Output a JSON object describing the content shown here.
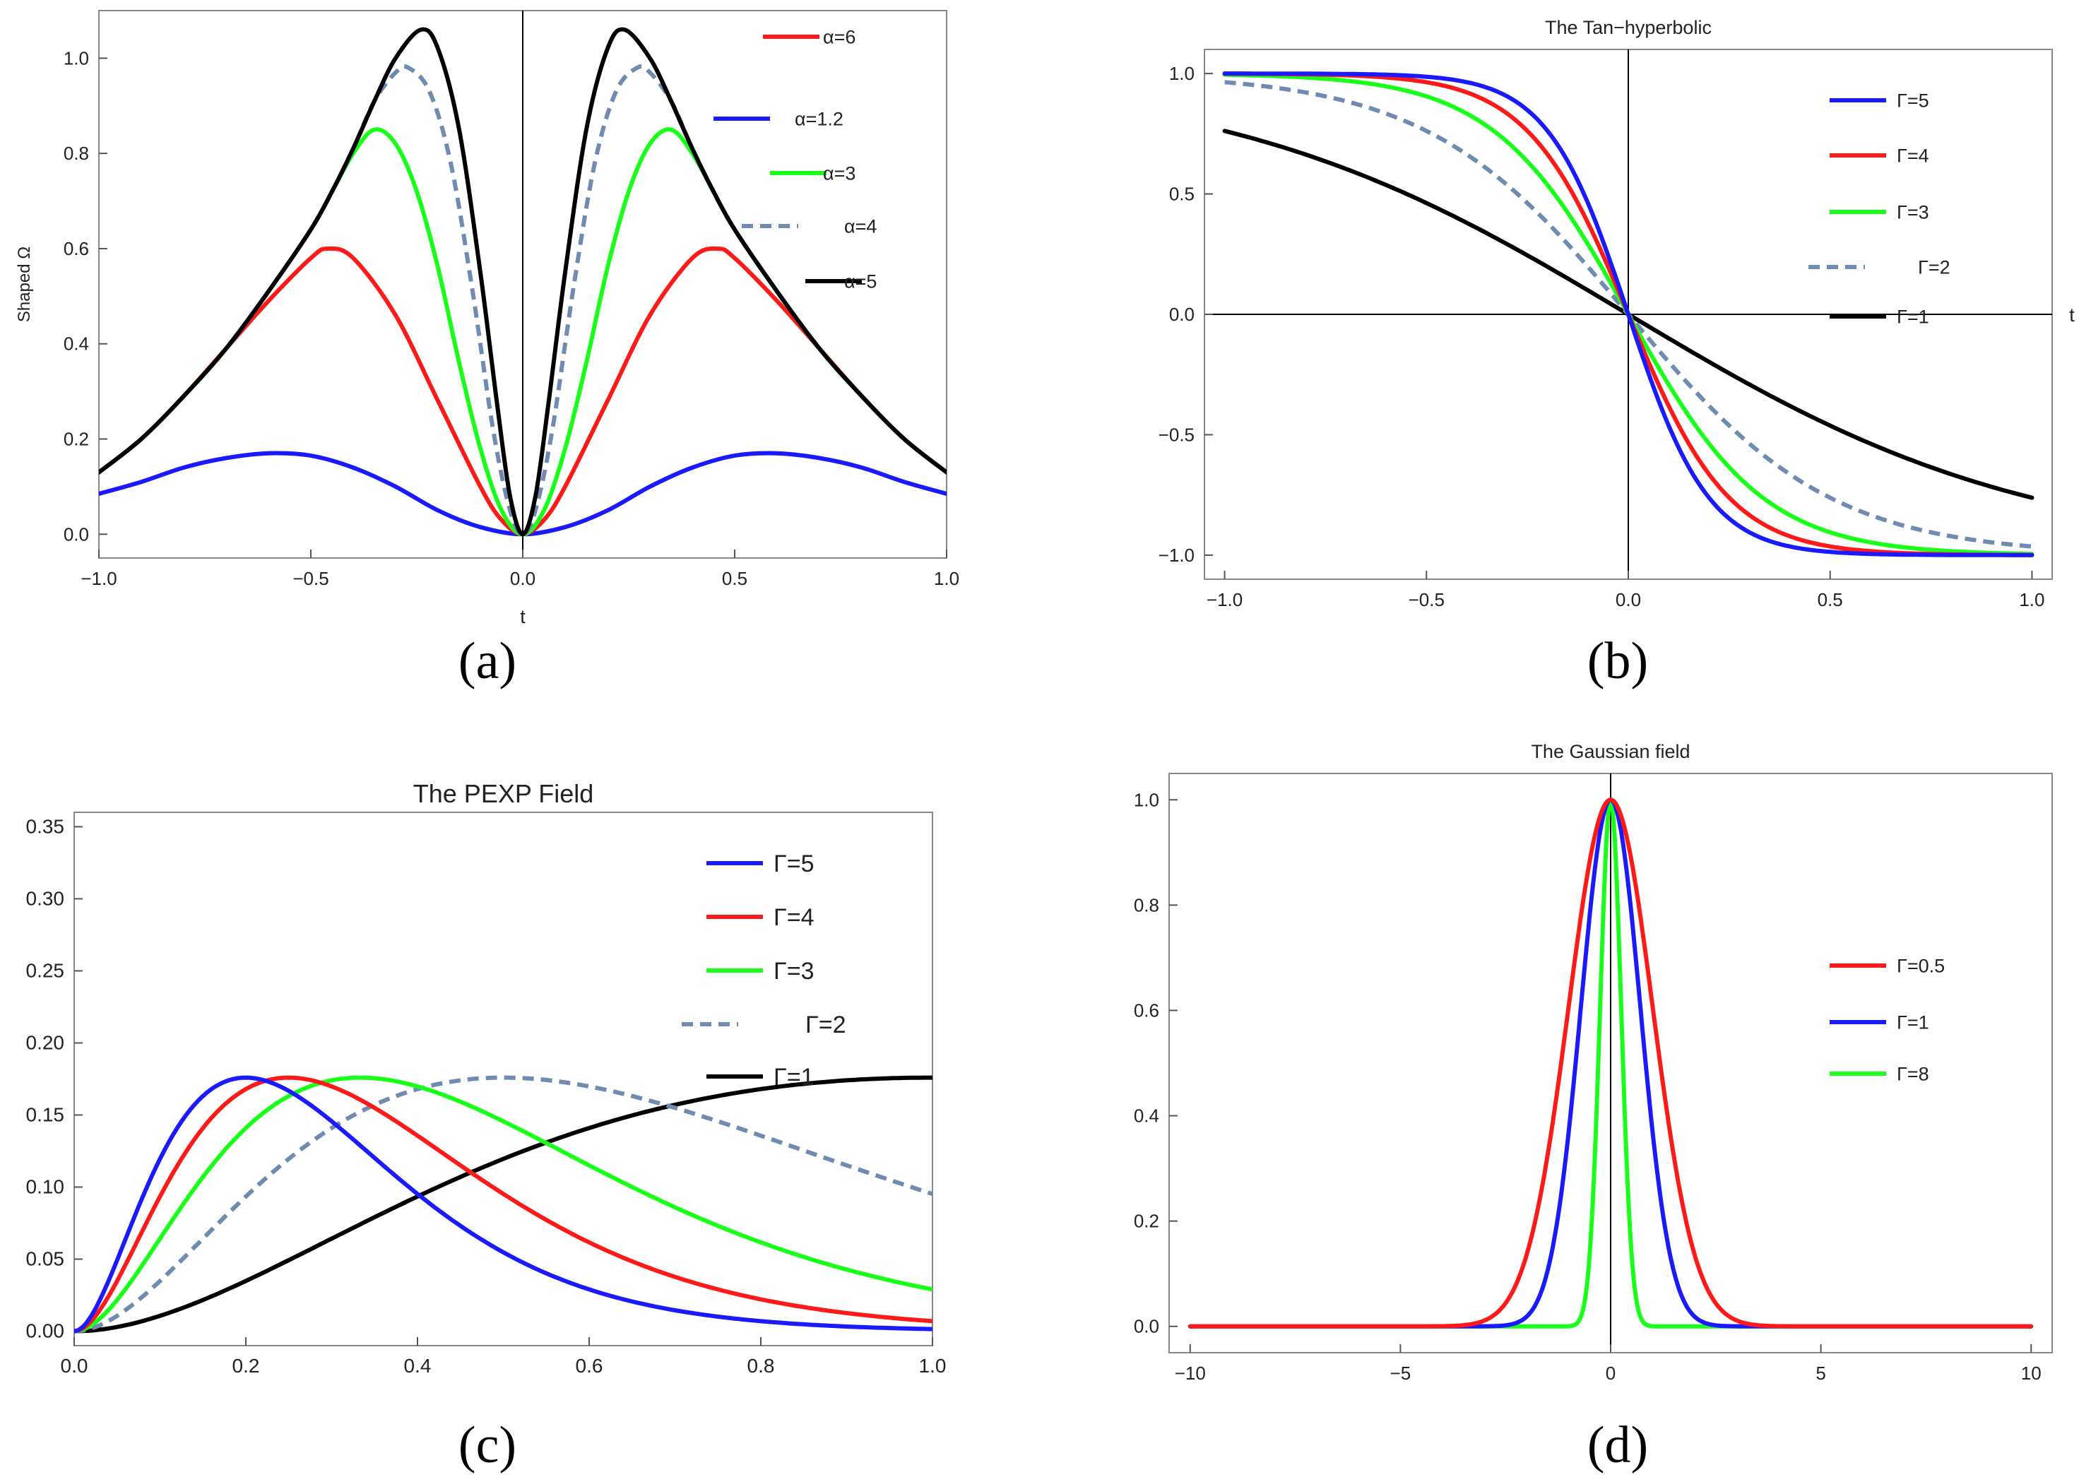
{
  "figure": {
    "panel_labels": [
      "(a)",
      "(b)",
      "(c)",
      "(d)"
    ]
  },
  "chart_data": [
    {
      "id": "a",
      "type": "line",
      "title": "",
      "xlabel": "t",
      "ylabel": "Shaped Ω",
      "xlim": [
        -1.0,
        1.0
      ],
      "ylim": [
        -0.05,
        1.1
      ],
      "x_ticks": [
        -1.0,
        -0.5,
        0.0,
        0.5,
        1.0
      ],
      "x_tick_labels": [
        "-1.0",
        "-0.5",
        "0.0",
        "0.5",
        "1.0"
      ],
      "y_ticks": [
        0.0,
        0.2,
        0.4,
        0.6,
        0.8,
        1.0
      ],
      "y_tick_labels": [
        "0.0",
        "0.2",
        "0.4",
        "0.6",
        "0.8",
        "1.0"
      ],
      "legend_position": "top-right",
      "series": [
        {
          "name": "α=6",
          "color": "#ff1a1a",
          "dash": false,
          "x": [
            -1.0,
            -0.9,
            -0.8,
            -0.7,
            -0.6,
            -0.5,
            -0.46,
            -0.4,
            -0.3,
            -0.2,
            -0.1,
            -0.05,
            0.0,
            0.05,
            0.1,
            0.2,
            0.3,
            0.4,
            0.46,
            0.5,
            0.6,
            0.7,
            0.8,
            0.9,
            1.0
          ],
          "y": [
            0.13,
            0.2,
            0.29,
            0.39,
            0.49,
            0.58,
            0.6,
            0.58,
            0.46,
            0.28,
            0.1,
            0.03,
            0.0,
            0.03,
            0.1,
            0.28,
            0.46,
            0.58,
            0.6,
            0.58,
            0.49,
            0.39,
            0.29,
            0.2,
            0.13
          ]
        },
        {
          "name": "α=1.2",
          "color": "#1a1aff",
          "dash": false,
          "x": [
            -1.0,
            -0.9,
            -0.8,
            -0.7,
            -0.6,
            -0.5,
            -0.4,
            -0.3,
            -0.2,
            -0.1,
            0.0,
            0.1,
            0.2,
            0.3,
            0.4,
            0.5,
            0.6,
            0.7,
            0.8,
            0.9,
            1.0
          ],
          "y": [
            0.085,
            0.11,
            0.14,
            0.16,
            0.17,
            0.165,
            0.14,
            0.1,
            0.05,
            0.015,
            0.0,
            0.015,
            0.05,
            0.1,
            0.14,
            0.165,
            0.17,
            0.16,
            0.14,
            0.11,
            0.085
          ]
        },
        {
          "name": "α=3",
          "color": "#1aff1a",
          "dash": false,
          "x": [
            -1.0,
            -0.9,
            -0.8,
            -0.7,
            -0.6,
            -0.5,
            -0.45,
            -0.4,
            -0.35,
            -0.3,
            -0.25,
            -0.2,
            -0.15,
            -0.1,
            -0.05,
            0.0,
            0.05,
            0.1,
            0.15,
            0.2,
            0.25,
            0.3,
            0.35,
            0.4,
            0.45,
            0.5,
            0.6,
            0.7,
            0.8,
            0.9,
            1.0
          ],
          "y": [
            0.13,
            0.2,
            0.29,
            0.39,
            0.51,
            0.64,
            0.72,
            0.8,
            0.85,
            0.82,
            0.72,
            0.56,
            0.36,
            0.18,
            0.05,
            0.0,
            0.05,
            0.18,
            0.36,
            0.56,
            0.72,
            0.82,
            0.85,
            0.8,
            0.72,
            0.64,
            0.51,
            0.39,
            0.29,
            0.2,
            0.13
          ]
        },
        {
          "name": "α=4",
          "color": "#6f8bb0",
          "dash": true,
          "x": [
            -1.0,
            -0.9,
            -0.8,
            -0.7,
            -0.6,
            -0.5,
            -0.45,
            -0.4,
            -0.35,
            -0.3,
            -0.27,
            -0.22,
            -0.17,
            -0.12,
            -0.07,
            -0.03,
            0.0,
            0.03,
            0.07,
            0.12,
            0.17,
            0.22,
            0.27,
            0.3,
            0.35,
            0.4,
            0.45,
            0.5,
            0.6,
            0.7,
            0.8,
            0.9,
            1.0
          ],
          "y": [
            0.13,
            0.2,
            0.29,
            0.39,
            0.51,
            0.64,
            0.72,
            0.81,
            0.91,
            0.97,
            0.98,
            0.93,
            0.78,
            0.52,
            0.22,
            0.05,
            0.0,
            0.05,
            0.22,
            0.52,
            0.78,
            0.93,
            0.98,
            0.97,
            0.91,
            0.81,
            0.72,
            0.64,
            0.51,
            0.39,
            0.29,
            0.2,
            0.13
          ]
        },
        {
          "name": "α=5",
          "color": "#000000",
          "dash": false,
          "x": [
            -1.0,
            -0.9,
            -0.8,
            -0.7,
            -0.6,
            -0.5,
            -0.45,
            -0.4,
            -0.35,
            -0.3,
            -0.24,
            -0.2,
            -0.15,
            -0.1,
            -0.06,
            -0.03,
            0.0,
            0.03,
            0.06,
            0.1,
            0.15,
            0.2,
            0.24,
            0.3,
            0.35,
            0.4,
            0.45,
            0.5,
            0.6,
            0.7,
            0.8,
            0.9,
            1.0
          ],
          "y": [
            0.13,
            0.2,
            0.29,
            0.39,
            0.51,
            0.64,
            0.72,
            0.81,
            0.91,
            1.0,
            1.06,
            1.02,
            0.85,
            0.55,
            0.27,
            0.08,
            0.0,
            0.08,
            0.27,
            0.55,
            0.85,
            1.02,
            1.06,
            1.0,
            0.91,
            0.81,
            0.72,
            0.64,
            0.51,
            0.39,
            0.29,
            0.2,
            0.13
          ]
        }
      ]
    },
    {
      "id": "b",
      "type": "line",
      "title": "The Tan−hyperbolic",
      "xlabel": "t",
      "ylabel": "",
      "xlim": [
        -1.05,
        1.05
      ],
      "ylim": [
        -1.1,
        1.1
      ],
      "x_ticks": [
        -1.0,
        -0.5,
        0.0,
        0.5,
        1.0
      ],
      "x_tick_labels": [
        "-1.0",
        "-0.5",
        "0.0",
        "0.5",
        "1.0"
      ],
      "y_ticks": [
        -1.0,
        -0.5,
        0.0,
        0.5,
        1.0
      ],
      "y_tick_labels": [
        "-1.0",
        "-0.5",
        "0.0",
        "0.5",
        "1.0"
      ],
      "legend_position": "top-right",
      "series": [
        {
          "name": "Γ=5",
          "color": "#1a1aff",
          "dash": false,
          "gamma": 5
        },
        {
          "name": "Γ=4",
          "color": "#ff1a1a",
          "dash": false,
          "gamma": 4
        },
        {
          "name": "Γ=3",
          "color": "#1aff1a",
          "dash": false,
          "gamma": 3
        },
        {
          "name": "Γ=2",
          "color": "#6f8bb0",
          "dash": true,
          "gamma": 2
        },
        {
          "name": "Γ=1",
          "color": "#000000",
          "dash": false,
          "gamma": 1
        }
      ]
    },
    {
      "id": "c",
      "type": "line",
      "title": "The PEXP Field",
      "xlabel": "",
      "ylabel": "",
      "xlim": [
        0.0,
        1.0
      ],
      "ylim": [
        -0.01,
        0.36
      ],
      "x_ticks": [
        0.0,
        0.2,
        0.4,
        0.6,
        0.8,
        1.0
      ],
      "x_tick_labels": [
        "0.0",
        "0.2",
        "0.4",
        "0.6",
        "0.8",
        "1.0"
      ],
      "y_ticks": [
        0.0,
        0.05,
        0.1,
        0.15,
        0.2,
        0.25,
        0.3,
        0.35
      ],
      "y_tick_labels": [
        "0.00",
        "0.05",
        "0.10",
        "0.15",
        "0.20",
        "0.25",
        "0.30",
        "0.35"
      ],
      "legend_position": "top-right",
      "series": [
        {
          "name": "Γ=5",
          "color": "#1a1aff",
          "dash": false,
          "gamma": 5
        },
        {
          "name": "Γ=4",
          "color": "#ff1a1a",
          "dash": false,
          "gamma": 4
        },
        {
          "name": "Γ=3",
          "color": "#1aff1a",
          "dash": false,
          "gamma": 3
        },
        {
          "name": "Γ=2",
          "color": "#6f8bb0",
          "dash": true,
          "gamma": 2
        },
        {
          "name": "Γ=1",
          "color": "#000000",
          "dash": false,
          "gamma": 1
        }
      ]
    },
    {
      "id": "d",
      "type": "line",
      "title": "The Gaussian field",
      "xlabel": "",
      "ylabel": "",
      "xlim": [
        -10.5,
        10.5
      ],
      "ylim": [
        -0.05,
        1.05
      ],
      "x_ticks": [
        -10,
        -5,
        0,
        5,
        10
      ],
      "x_tick_labels": [
        "-10",
        "-5",
        "0",
        "5",
        "10"
      ],
      "y_ticks": [
        0.0,
        0.2,
        0.4,
        0.6,
        0.8,
        1.0
      ],
      "y_tick_labels": [
        "0.0",
        "0.2",
        "0.4",
        "0.6",
        "0.8",
        "1.0"
      ],
      "legend_position": "right",
      "series": [
        {
          "name": "Γ=0.5",
          "color": "#ff1a1a",
          "dash": false,
          "gamma": 0.5
        },
        {
          "name": "Γ=1",
          "color": "#1a1aff",
          "dash": false,
          "gamma": 1
        },
        {
          "name": "Γ=8",
          "color": "#1aff1a",
          "dash": false,
          "gamma": 8
        }
      ]
    }
  ]
}
